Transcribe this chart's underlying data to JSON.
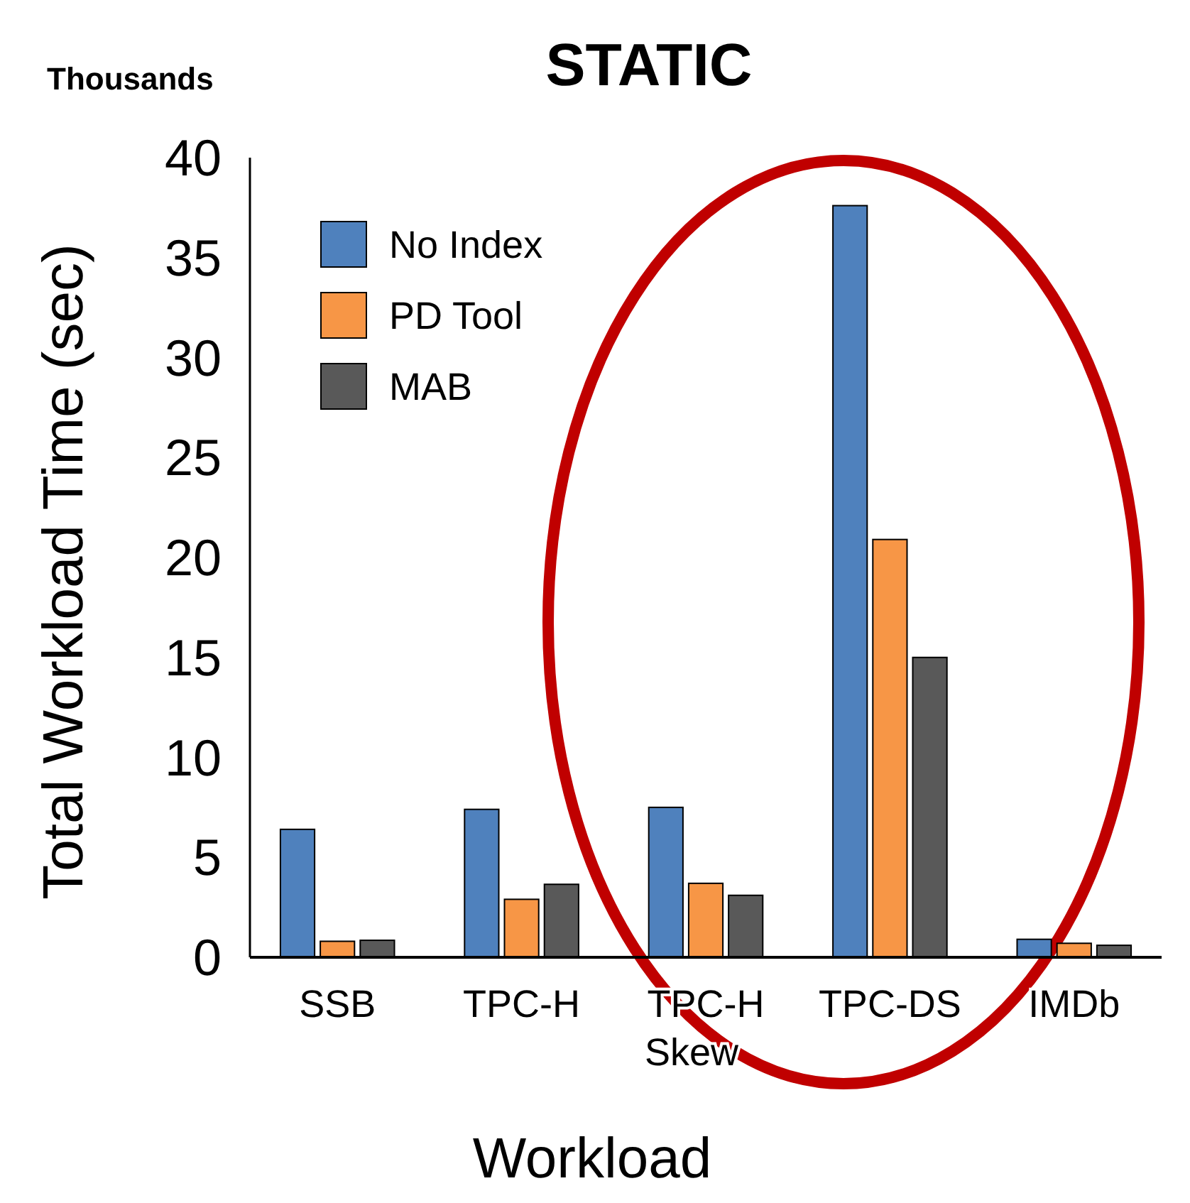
{
  "chart_data": {
    "type": "bar",
    "title": "STATIC",
    "xlabel": "Workload",
    "ylabel": "Total Workload Time (sec)",
    "annotations": [
      "Thousands"
    ],
    "categories": [
      "SSB",
      "TPC-H",
      "TPC-H Skew",
      "TPC-DS",
      "IMDb"
    ],
    "series": [
      {
        "name": "No Index",
        "color": "#4f81bd",
        "values": [
          6.4,
          7.4,
          7.5,
          37.6,
          0.9
        ]
      },
      {
        "name": "PD Tool",
        "color": "#f79646",
        "values": [
          0.8,
          2.9,
          3.7,
          20.9,
          0.7
        ]
      },
      {
        "name": "MAB",
        "color": "#595959",
        "values": [
          0.85,
          3.65,
          3.1,
          15.0,
          0.6
        ]
      }
    ],
    "ylim": [
      0,
      40
    ],
    "yticks": [
      0,
      5,
      10,
      15,
      20,
      25,
      30,
      35,
      40
    ],
    "grid": false,
    "legend": "top left"
  }
}
